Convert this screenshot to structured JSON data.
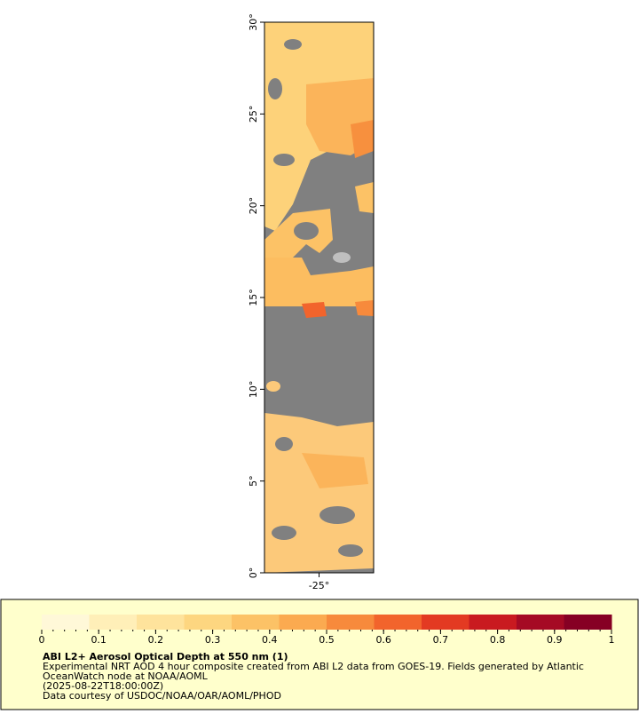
{
  "map": {
    "xlim": [
      -28,
      -22
    ],
    "ylim": [
      0,
      30
    ],
    "lon_ticks": [
      {
        "value": -25,
        "label": "-25°"
      }
    ],
    "lat_ticks": [
      {
        "value": 0,
        "label": "0°"
      },
      {
        "value": 5,
        "label": "5°"
      },
      {
        "value": 10,
        "label": "10°"
      },
      {
        "value": 15,
        "label": "15°"
      },
      {
        "value": 20,
        "label": "20°"
      },
      {
        "value": 25,
        "label": "25°"
      },
      {
        "value": 30,
        "label": "30°"
      }
    ]
  },
  "colorbar": {
    "range": [
      0,
      1
    ],
    "ticks": [
      0,
      0.1,
      0.2,
      0.3,
      0.4,
      0.5,
      0.6,
      0.7,
      0.8,
      0.9,
      1
    ],
    "colors": [
      "#fff8d8",
      "#ffefb8",
      "#fee39c",
      "#fdd680",
      "#fcc266",
      "#fbaa50",
      "#f78a3c",
      "#f2642c",
      "#e33a22",
      "#c91a20",
      "#a50a24",
      "#860024"
    ]
  },
  "caption": {
    "title": "ABI L2+ Aerosol Optical Depth at 550 nm (1)",
    "lines": [
      "Experimental NRT AOD 4 hour composite created from ABI L2 data from GOES-19. Fields generated by Atlantic",
      "OceanWatch node at NOAA/AOML",
      "(2025-08-22T18:00:00Z)",
      "Data courtesy of USDOC/NOAA/OAR/AOML/PHOD"
    ]
  }
}
